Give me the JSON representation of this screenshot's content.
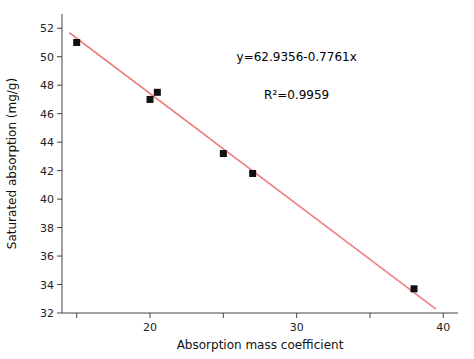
{
  "chart_data": {
    "type": "scatter",
    "xlabel": "Absorption mass coefficient",
    "ylabel": "Saturated absorption (mg/g)",
    "xlim": [
      14,
      41
    ],
    "ylim": [
      32,
      53
    ],
    "xticks": [
      {
        "value": 15,
        "label": null
      },
      20,
      {
        "value": 25,
        "label": null
      },
      30,
      {
        "value": 35,
        "label": null
      },
      40
    ],
    "yticks": [
      32,
      34,
      36,
      38,
      40,
      42,
      44,
      46,
      48,
      50,
      52
    ],
    "grid": false,
    "series": [
      {
        "type": "line",
        "color": "#f08080",
        "x": [
          14.5,
          39.5
        ],
        "values": [
          51.68215,
          32.27965
        ]
      },
      {
        "type": "scatter",
        "marker": "square",
        "color": "#111111",
        "x": [
          15,
          20,
          20.5,
          25,
          27,
          38
        ],
        "values": [
          51.0,
          47.0,
          47.5,
          43.2,
          41.8,
          33.7
        ]
      }
    ],
    "annotations": [
      {
        "text": "y=62.9356-0.7761x",
        "x": 30,
        "y": 49.5
      },
      {
        "text": "R²=0.9959",
        "x": 30,
        "y": 47.8
      }
    ]
  }
}
